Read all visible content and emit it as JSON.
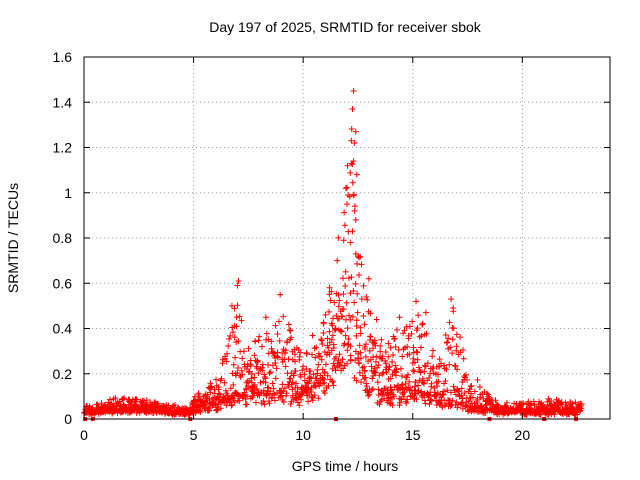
{
  "chart_data": {
    "type": "scatter",
    "title": "Day 197 of 2025, SRMTID for receiver sbok",
    "xlabel": "GPS time / hours",
    "ylabel": "SRMTID / TECUs",
    "xlim": [
      0,
      24
    ],
    "ylim": [
      0,
      1.6
    ],
    "xticks": [
      0,
      5,
      10,
      15,
      20
    ],
    "xtick_labels": [
      "0",
      "5",
      "10",
      "15",
      "20"
    ],
    "yticks": [
      0,
      0.2,
      0.4,
      0.6,
      0.8,
      1.0,
      1.2,
      1.4,
      1.6
    ],
    "ytick_labels": [
      "0",
      "0.2",
      "0.4",
      "0.6",
      "0.8",
      "1",
      "1.2",
      "1.4",
      "1.6"
    ],
    "grid": true,
    "marker": "plus",
    "color": "#ff0000",
    "zero_markers_x": [
      0.05,
      0.4,
      4.85,
      11.5,
      18.5,
      21.0,
      22.45
    ],
    "envelope": {
      "x": [
        0,
        0.5,
        1.5,
        2.0,
        3.0,
        4.0,
        4.8,
        5.0,
        5.5,
        6.0,
        6.5,
        6.9,
        7.1,
        7.3,
        7.6,
        8.0,
        8.3,
        8.6,
        9.0,
        9.2,
        9.5,
        9.8,
        10.0,
        10.4,
        10.8,
        11.2,
        11.6,
        11.9,
        12.1,
        12.3,
        12.5,
        12.7,
        13.0,
        13.3,
        13.6,
        14.0,
        14.4,
        14.8,
        15.1,
        15.4,
        15.8,
        16.2,
        16.5,
        16.8,
        17.1,
        17.5,
        17.9,
        18.3,
        19.0,
        20.0,
        21.0,
        22.0,
        22.7
      ],
      "peak": [
        0.06,
        0.06,
        0.1,
        0.1,
        0.08,
        0.06,
        0.05,
        0.1,
        0.13,
        0.18,
        0.3,
        0.6,
        0.56,
        0.4,
        0.3,
        0.42,
        0.45,
        0.36,
        0.52,
        0.5,
        0.36,
        0.33,
        0.32,
        0.36,
        0.4,
        0.58,
        0.78,
        1.05,
        1.3,
        1.45,
        1.05,
        0.62,
        0.6,
        0.45,
        0.33,
        0.38,
        0.44,
        0.4,
        0.52,
        0.46,
        0.33,
        0.3,
        0.36,
        0.52,
        0.42,
        0.2,
        0.18,
        0.12,
        0.07,
        0.07,
        0.09,
        0.08,
        0.07
      ],
      "base": [
        0.03,
        0.03,
        0.04,
        0.04,
        0.04,
        0.03,
        0.03,
        0.04,
        0.05,
        0.06,
        0.08,
        0.1,
        0.1,
        0.1,
        0.1,
        0.1,
        0.1,
        0.1,
        0.1,
        0.1,
        0.1,
        0.1,
        0.1,
        0.12,
        0.15,
        0.2,
        0.25,
        0.28,
        0.3,
        0.3,
        0.25,
        0.2,
        0.16,
        0.12,
        0.1,
        0.1,
        0.1,
        0.1,
        0.12,
        0.1,
        0.1,
        0.08,
        0.07,
        0.07,
        0.06,
        0.05,
        0.04,
        0.04,
        0.03,
        0.03,
        0.03,
        0.03,
        0.03
      ]
    },
    "highlight_points": [
      {
        "x": 12.3,
        "y": 1.45
      },
      {
        "x": 12.25,
        "y": 1.37
      },
      {
        "x": 12.4,
        "y": 1.27
      },
      {
        "x": 12.2,
        "y": 1.23
      },
      {
        "x": 12.35,
        "y": 1.22
      },
      {
        "x": 12.3,
        "y": 1.14
      },
      {
        "x": 12.2,
        "y": 1.13
      },
      {
        "x": 12.45,
        "y": 1.08
      },
      {
        "x": 11.95,
        "y": 1.02
      },
      {
        "x": 12.05,
        "y": 0.99
      },
      {
        "x": 12.0,
        "y": 0.95
      },
      {
        "x": 12.35,
        "y": 0.92
      },
      {
        "x": 12.4,
        "y": 0.88
      },
      {
        "x": 12.25,
        "y": 0.83
      },
      {
        "x": 12.15,
        "y": 0.78
      },
      {
        "x": 12.4,
        "y": 0.73
      },
      {
        "x": 11.85,
        "y": 0.79
      },
      {
        "x": 12.5,
        "y": 0.72
      },
      {
        "x": 7.05,
        "y": 0.61
      },
      {
        "x": 7.0,
        "y": 0.59
      },
      {
        "x": 6.75,
        "y": 0.5
      },
      {
        "x": 8.95,
        "y": 0.55
      },
      {
        "x": 15.15,
        "y": 0.52
      },
      {
        "x": 16.75,
        "y": 0.53
      },
      {
        "x": 13.0,
        "y": 0.62
      },
      {
        "x": 11.55,
        "y": 0.7
      },
      {
        "x": 11.2,
        "y": 0.58
      },
      {
        "x": 8.3,
        "y": 0.45
      },
      {
        "x": 15.6,
        "y": 0.47
      },
      {
        "x": 14.4,
        "y": 0.45
      }
    ]
  }
}
